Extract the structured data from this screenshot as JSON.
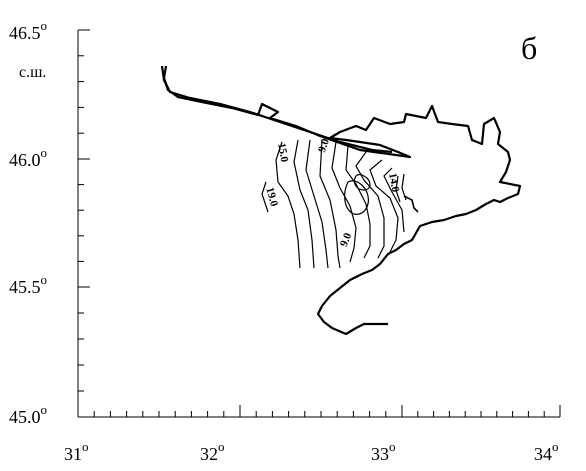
{
  "panel_label": "б",
  "lat_unit": "с.ш.",
  "degree_symbol": "o",
  "lat_ticks": [
    "46.5",
    "46.0",
    "45.5",
    "45.0"
  ],
  "lon_ticks": [
    "31",
    "32",
    "33",
    "34"
  ],
  "contour_labels": [
    "15.0",
    "9.0",
    "19.0",
    "9.0",
    "14.0"
  ],
  "line_color": "#000000"
}
